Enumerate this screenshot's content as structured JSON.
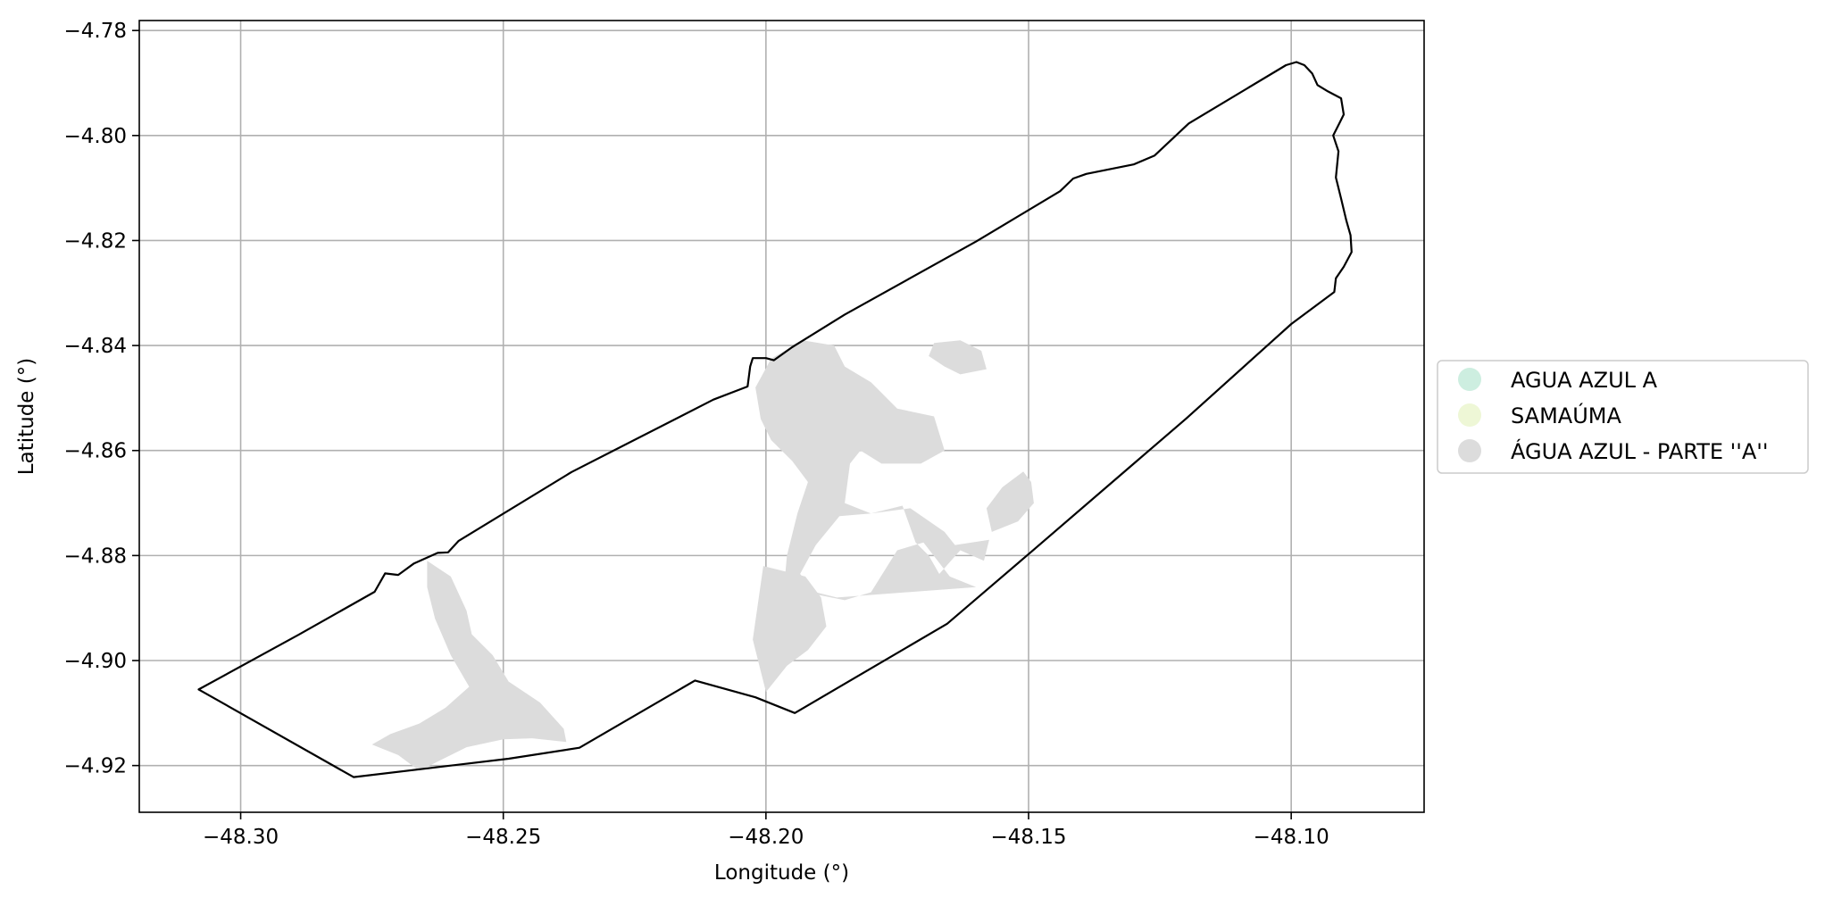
{
  "chart_data": {
    "type": "map",
    "xlabel": "Longitude (°)",
    "ylabel": "Latitude (°)",
    "xlim": [
      -48.3193,
      -48.0747
    ],
    "ylim": [
      -4.9289,
      -4.7781
    ],
    "xticks": [
      -48.3,
      -48.25,
      -48.2,
      -48.15,
      -48.1
    ],
    "xtick_labels": [
      "−48.30",
      "−48.25",
      "−48.20",
      "−48.15",
      "−48.10"
    ],
    "yticks": [
      -4.78,
      -4.8,
      -4.82,
      -4.84,
      -4.86,
      -4.88,
      -4.9,
      -4.92
    ],
    "ytick_labels": [
      "−4.78",
      "−4.80",
      "−4.82",
      "−4.84",
      "−4.86",
      "−4.88",
      "−4.90",
      "−4.92"
    ],
    "grid": true,
    "legend_position": "outside-right",
    "legend": [
      {
        "label": "AGUA AZUL A",
        "color": "#cdeee0"
      },
      {
        "label": "SAMAÚMA",
        "color": "#eef7d6"
      },
      {
        "label": "ÁGUA AZUL - PARTE ''A''",
        "color": "#dcdcdc"
      }
    ],
    "boundary": {
      "color": "#000000",
      "coords": [
        [
          -48.308,
          -4.9055
        ],
        [
          -48.289,
          -4.8951
        ],
        [
          -48.2745,
          -4.8869
        ],
        [
          -48.2725,
          -4.8834
        ],
        [
          -48.27,
          -4.8837
        ],
        [
          -48.267,
          -4.8815
        ],
        [
          -48.2625,
          -4.8795
        ],
        [
          -48.2605,
          -4.8794
        ],
        [
          -48.2585,
          -4.8772
        ],
        [
          -48.237,
          -4.8641
        ],
        [
          -48.21,
          -4.8503
        ],
        [
          -48.2035,
          -4.8478
        ],
        [
          -48.203,
          -4.844
        ],
        [
          -48.2025,
          -4.8424
        ],
        [
          -48.2,
          -4.8424
        ],
        [
          -48.1985,
          -4.8428
        ],
        [
          -48.195,
          -4.8403
        ],
        [
          -48.185,
          -4.8341
        ],
        [
          -48.16,
          -4.8202
        ],
        [
          -48.144,
          -4.8106
        ],
        [
          -48.1415,
          -4.8082
        ],
        [
          -48.139,
          -4.8073
        ],
        [
          -48.13,
          -4.8055
        ],
        [
          -48.126,
          -4.8038
        ],
        [
          -48.1195,
          -4.7977
        ],
        [
          -48.101,
          -4.7866
        ],
        [
          -48.099,
          -4.786
        ],
        [
          -48.0975,
          -4.7866
        ],
        [
          -48.096,
          -4.7882
        ],
        [
          -48.095,
          -4.7904
        ],
        [
          -48.093,
          -4.7916
        ],
        [
          -48.0905,
          -4.7929
        ],
        [
          -48.09,
          -4.796
        ],
        [
          -48.0908,
          -4.7976
        ],
        [
          -48.092,
          -4.8
        ],
        [
          -48.091,
          -4.803
        ],
        [
          -48.0915,
          -4.808
        ],
        [
          -48.0905,
          -4.812
        ],
        [
          -48.0895,
          -4.8162
        ],
        [
          -48.0887,
          -4.819
        ],
        [
          -48.0885,
          -4.8222
        ],
        [
          -48.09,
          -4.825
        ],
        [
          -48.0915,
          -4.8272
        ],
        [
          -48.0918,
          -4.8298
        ],
        [
          -48.1,
          -4.8359
        ],
        [
          -48.12,
          -4.8539
        ],
        [
          -48.1495,
          -4.8793
        ],
        [
          -48.1655,
          -4.893
        ],
        [
          -48.1945,
          -4.91
        ],
        [
          -48.202,
          -4.907
        ],
        [
          -48.2135,
          -4.9038
        ],
        [
          -48.2355,
          -4.9166
        ],
        [
          -48.249,
          -4.9187
        ],
        [
          -48.2785,
          -4.9222
        ],
        [
          -48.308,
          -4.9055
        ]
      ]
    },
    "regions": [
      {
        "name": "ÁGUA AZUL - PARTE ''A''",
        "color": "#dcdcdc",
        "polygons": [
          [
            [
              -48.2645,
              -4.881
            ],
            [
              -48.26,
              -4.884
            ],
            [
              -48.257,
              -4.8905
            ],
            [
              -48.256,
              -4.895
            ],
            [
              -48.252,
              -4.899
            ],
            [
              -48.249,
              -4.904
            ],
            [
              -48.243,
              -4.908
            ],
            [
              -48.2385,
              -4.913
            ],
            [
              -48.238,
              -4.9155
            ],
            [
              -48.2445,
              -4.9148
            ],
            [
              -48.25,
              -4.915
            ],
            [
              -48.257,
              -4.9165
            ],
            [
              -48.262,
              -4.919
            ],
            [
              -48.266,
              -4.921
            ],
            [
              -48.27,
              -4.918
            ],
            [
              -48.275,
              -4.916
            ],
            [
              -48.2715,
              -4.914
            ],
            [
              -48.266,
              -4.912
            ],
            [
              -48.261,
              -4.909
            ],
            [
              -48.2565,
              -4.905
            ],
            [
              -48.26,
              -4.899
            ],
            [
              -48.263,
              -4.892
            ],
            [
              -48.2645,
              -4.886
            ]
          ],
          [
            [
              -48.199,
              -4.8425
            ],
            [
              -48.193,
              -4.839
            ],
            [
              -48.187,
              -4.84
            ],
            [
              -48.185,
              -4.844
            ],
            [
              -48.18,
              -4.847
            ],
            [
              -48.175,
              -4.852
            ],
            [
              -48.168,
              -4.8535
            ],
            [
              -48.166,
              -4.86
            ],
            [
              -48.1705,
              -4.8625
            ],
            [
              -48.178,
              -4.8625
            ],
            [
              -48.182,
              -4.86
            ],
            [
              -48.184,
              -4.8625
            ],
            [
              -48.185,
              -4.87
            ],
            [
              -48.18,
              -4.872
            ],
            [
              -48.174,
              -4.8705
            ],
            [
              -48.1715,
              -4.8775
            ],
            [
              -48.169,
              -4.88
            ],
            [
              -48.167,
              -4.8835
            ],
            [
              -48.163,
              -4.879
            ],
            [
              -48.1585,
              -4.881
            ],
            [
              -48.1575,
              -4.877
            ],
            [
              -48.164,
              -4.878
            ],
            [
              -48.166,
              -4.8755
            ],
            [
              -48.1725,
              -4.871
            ],
            [
              -48.18,
              -4.872
            ],
            [
              -48.186,
              -4.8725
            ],
            [
              -48.1905,
              -4.878
            ],
            [
              -48.1935,
              -4.8835
            ],
            [
              -48.19,
              -4.8875
            ],
            [
              -48.185,
              -4.8885
            ],
            [
              -48.18,
              -4.887
            ],
            [
              -48.175,
              -4.879
            ],
            [
              -48.17,
              -4.8775
            ],
            [
              -48.165,
              -4.884
            ],
            [
              -48.16,
              -4.886
            ],
            [
              -48.1865,
              -4.888
            ],
            [
              -48.1965,
              -4.8855
            ],
            [
              -48.196,
              -4.88
            ],
            [
              -48.194,
              -4.872
            ],
            [
              -48.192,
              -4.866
            ],
            [
              -48.195,
              -4.862
            ],
            [
              -48.199,
              -4.858
            ],
            [
              -48.201,
              -4.854
            ],
            [
              -48.202,
              -4.848
            ]
          ],
          [
            [
              -48.2005,
              -4.882
            ],
            [
              -48.1925,
              -4.884
            ],
            [
              -48.1895,
              -4.888
            ],
            [
              -48.1885,
              -4.8935
            ],
            [
              -48.192,
              -4.898
            ],
            [
              -48.196,
              -4.901
            ],
            [
              -48.2,
              -4.906
            ],
            [
              -48.2025,
              -4.896
            ],
            [
              -48.2015,
              -4.889
            ]
          ],
          [
            [
              -48.168,
              -4.8395
            ],
            [
              -48.163,
              -4.839
            ],
            [
              -48.159,
              -4.841
            ],
            [
              -48.158,
              -4.8445
            ],
            [
              -48.163,
              -4.8455
            ],
            [
              -48.166,
              -4.844
            ],
            [
              -48.169,
              -4.842
            ]
          ],
          [
            [
              -48.155,
              -4.867
            ],
            [
              -48.151,
              -4.864
            ],
            [
              -48.1495,
              -4.866
            ],
            [
              -48.149,
              -4.87
            ],
            [
              -48.152,
              -4.8735
            ],
            [
              -48.157,
              -4.8755
            ],
            [
              -48.158,
              -4.871
            ]
          ]
        ]
      }
    ]
  }
}
